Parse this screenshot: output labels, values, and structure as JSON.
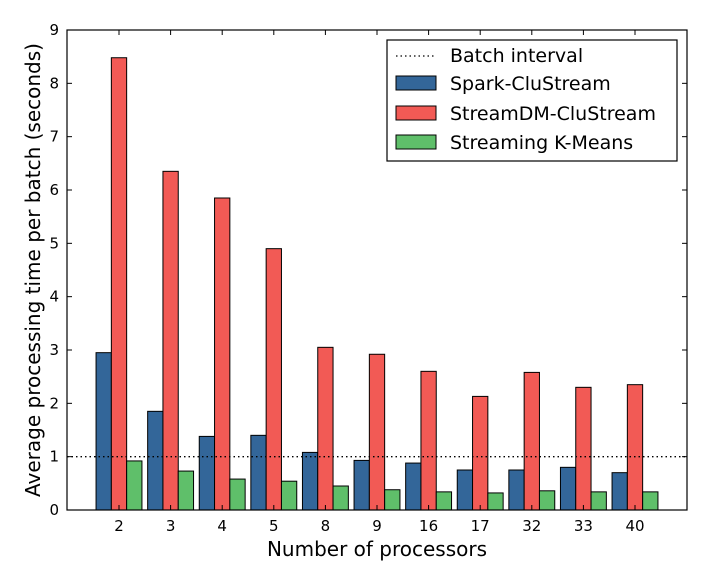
{
  "chart_data": {
    "type": "bar",
    "xlabel": "Number of processors",
    "ylabel": "Average processing time per batch (seconds)",
    "categories": [
      "2",
      "3",
      "4",
      "5",
      "8",
      "9",
      "16",
      "17",
      "32",
      "33",
      "40"
    ],
    "ylim": [
      0,
      9
    ],
    "yticks": [
      "0",
      "1",
      "2",
      "3",
      "4",
      "5",
      "6",
      "7",
      "8",
      "9"
    ],
    "series": [
      {
        "name": "Spark-CluStream",
        "color": "#336699",
        "values": [
          2.95,
          1.85,
          1.38,
          1.4,
          1.08,
          0.93,
          0.88,
          0.75,
          0.75,
          0.8,
          0.7
        ]
      },
      {
        "name": "StreamDM-CluStream",
        "color": "#f25a55",
        "values": [
          8.48,
          6.35,
          5.85,
          4.9,
          3.05,
          2.92,
          2.6,
          2.13,
          2.58,
          2.3,
          2.35
        ]
      },
      {
        "name": "Streaming K-Means",
        "color": "#5fbf6a",
        "values": [
          0.92,
          0.73,
          0.58,
          0.54,
          0.45,
          0.38,
          0.34,
          0.32,
          0.36,
          0.34,
          0.34
        ]
      }
    ],
    "reference_line": {
      "name": "Batch interval",
      "value": 1,
      "style": "dotted"
    },
    "legend": {
      "position": "top-right"
    },
    "grid": false
  }
}
